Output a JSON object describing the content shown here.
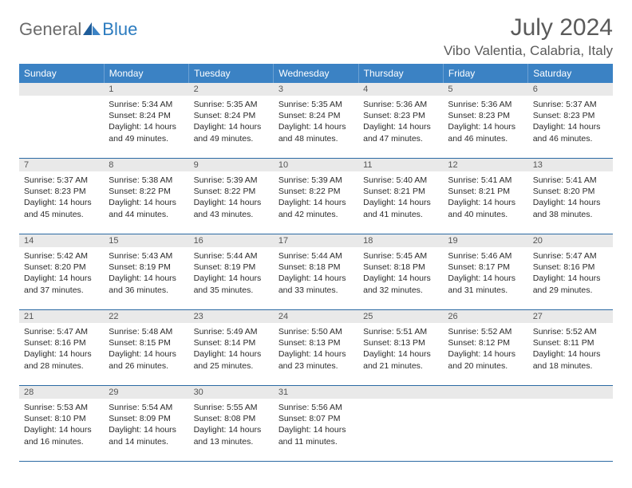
{
  "colors": {
    "header_bg": "#3b82c4",
    "header_text": "#ffffff",
    "daynum_bg": "#e9e9e9",
    "border": "#2b6aa3",
    "title_text": "#5a5a5a",
    "body_text": "#2b2b2b",
    "logo_gray": "#6b6b6b",
    "logo_blue": "#2b7bbf"
  },
  "logo": {
    "text1": "General",
    "text2": "Blue"
  },
  "title": "July 2024",
  "location": "Vibo Valentia, Calabria, Italy",
  "weekdays": [
    "Sunday",
    "Monday",
    "Tuesday",
    "Wednesday",
    "Thursday",
    "Friday",
    "Saturday"
  ],
  "weeks": [
    [
      {
        "day": "",
        "lines": []
      },
      {
        "day": "1",
        "lines": [
          "Sunrise: 5:34 AM",
          "Sunset: 8:24 PM",
          "Daylight: 14 hours",
          "and 49 minutes."
        ]
      },
      {
        "day": "2",
        "lines": [
          "Sunrise: 5:35 AM",
          "Sunset: 8:24 PM",
          "Daylight: 14 hours",
          "and 49 minutes."
        ]
      },
      {
        "day": "3",
        "lines": [
          "Sunrise: 5:35 AM",
          "Sunset: 8:24 PM",
          "Daylight: 14 hours",
          "and 48 minutes."
        ]
      },
      {
        "day": "4",
        "lines": [
          "Sunrise: 5:36 AM",
          "Sunset: 8:23 PM",
          "Daylight: 14 hours",
          "and 47 minutes."
        ]
      },
      {
        "day": "5",
        "lines": [
          "Sunrise: 5:36 AM",
          "Sunset: 8:23 PM",
          "Daylight: 14 hours",
          "and 46 minutes."
        ]
      },
      {
        "day": "6",
        "lines": [
          "Sunrise: 5:37 AM",
          "Sunset: 8:23 PM",
          "Daylight: 14 hours",
          "and 46 minutes."
        ]
      }
    ],
    [
      {
        "day": "7",
        "lines": [
          "Sunrise: 5:37 AM",
          "Sunset: 8:23 PM",
          "Daylight: 14 hours",
          "and 45 minutes."
        ]
      },
      {
        "day": "8",
        "lines": [
          "Sunrise: 5:38 AM",
          "Sunset: 8:22 PM",
          "Daylight: 14 hours",
          "and 44 minutes."
        ]
      },
      {
        "day": "9",
        "lines": [
          "Sunrise: 5:39 AM",
          "Sunset: 8:22 PM",
          "Daylight: 14 hours",
          "and 43 minutes."
        ]
      },
      {
        "day": "10",
        "lines": [
          "Sunrise: 5:39 AM",
          "Sunset: 8:22 PM",
          "Daylight: 14 hours",
          "and 42 minutes."
        ]
      },
      {
        "day": "11",
        "lines": [
          "Sunrise: 5:40 AM",
          "Sunset: 8:21 PM",
          "Daylight: 14 hours",
          "and 41 minutes."
        ]
      },
      {
        "day": "12",
        "lines": [
          "Sunrise: 5:41 AM",
          "Sunset: 8:21 PM",
          "Daylight: 14 hours",
          "and 40 minutes."
        ]
      },
      {
        "day": "13",
        "lines": [
          "Sunrise: 5:41 AM",
          "Sunset: 8:20 PM",
          "Daylight: 14 hours",
          "and 38 minutes."
        ]
      }
    ],
    [
      {
        "day": "14",
        "lines": [
          "Sunrise: 5:42 AM",
          "Sunset: 8:20 PM",
          "Daylight: 14 hours",
          "and 37 minutes."
        ]
      },
      {
        "day": "15",
        "lines": [
          "Sunrise: 5:43 AM",
          "Sunset: 8:19 PM",
          "Daylight: 14 hours",
          "and 36 minutes."
        ]
      },
      {
        "day": "16",
        "lines": [
          "Sunrise: 5:44 AM",
          "Sunset: 8:19 PM",
          "Daylight: 14 hours",
          "and 35 minutes."
        ]
      },
      {
        "day": "17",
        "lines": [
          "Sunrise: 5:44 AM",
          "Sunset: 8:18 PM",
          "Daylight: 14 hours",
          "and 33 minutes."
        ]
      },
      {
        "day": "18",
        "lines": [
          "Sunrise: 5:45 AM",
          "Sunset: 8:18 PM",
          "Daylight: 14 hours",
          "and 32 minutes."
        ]
      },
      {
        "day": "19",
        "lines": [
          "Sunrise: 5:46 AM",
          "Sunset: 8:17 PM",
          "Daylight: 14 hours",
          "and 31 minutes."
        ]
      },
      {
        "day": "20",
        "lines": [
          "Sunrise: 5:47 AM",
          "Sunset: 8:16 PM",
          "Daylight: 14 hours",
          "and 29 minutes."
        ]
      }
    ],
    [
      {
        "day": "21",
        "lines": [
          "Sunrise: 5:47 AM",
          "Sunset: 8:16 PM",
          "Daylight: 14 hours",
          "and 28 minutes."
        ]
      },
      {
        "day": "22",
        "lines": [
          "Sunrise: 5:48 AM",
          "Sunset: 8:15 PM",
          "Daylight: 14 hours",
          "and 26 minutes."
        ]
      },
      {
        "day": "23",
        "lines": [
          "Sunrise: 5:49 AM",
          "Sunset: 8:14 PM",
          "Daylight: 14 hours",
          "and 25 minutes."
        ]
      },
      {
        "day": "24",
        "lines": [
          "Sunrise: 5:50 AM",
          "Sunset: 8:13 PM",
          "Daylight: 14 hours",
          "and 23 minutes."
        ]
      },
      {
        "day": "25",
        "lines": [
          "Sunrise: 5:51 AM",
          "Sunset: 8:13 PM",
          "Daylight: 14 hours",
          "and 21 minutes."
        ]
      },
      {
        "day": "26",
        "lines": [
          "Sunrise: 5:52 AM",
          "Sunset: 8:12 PM",
          "Daylight: 14 hours",
          "and 20 minutes."
        ]
      },
      {
        "day": "27",
        "lines": [
          "Sunrise: 5:52 AM",
          "Sunset: 8:11 PM",
          "Daylight: 14 hours",
          "and 18 minutes."
        ]
      }
    ],
    [
      {
        "day": "28",
        "lines": [
          "Sunrise: 5:53 AM",
          "Sunset: 8:10 PM",
          "Daylight: 14 hours",
          "and 16 minutes."
        ]
      },
      {
        "day": "29",
        "lines": [
          "Sunrise: 5:54 AM",
          "Sunset: 8:09 PM",
          "Daylight: 14 hours",
          "and 14 minutes."
        ]
      },
      {
        "day": "30",
        "lines": [
          "Sunrise: 5:55 AM",
          "Sunset: 8:08 PM",
          "Daylight: 14 hours",
          "and 13 minutes."
        ]
      },
      {
        "day": "31",
        "lines": [
          "Sunrise: 5:56 AM",
          "Sunset: 8:07 PM",
          "Daylight: 14 hours",
          "and 11 minutes."
        ]
      },
      {
        "day": "",
        "lines": []
      },
      {
        "day": "",
        "lines": []
      },
      {
        "day": "",
        "lines": []
      }
    ]
  ]
}
